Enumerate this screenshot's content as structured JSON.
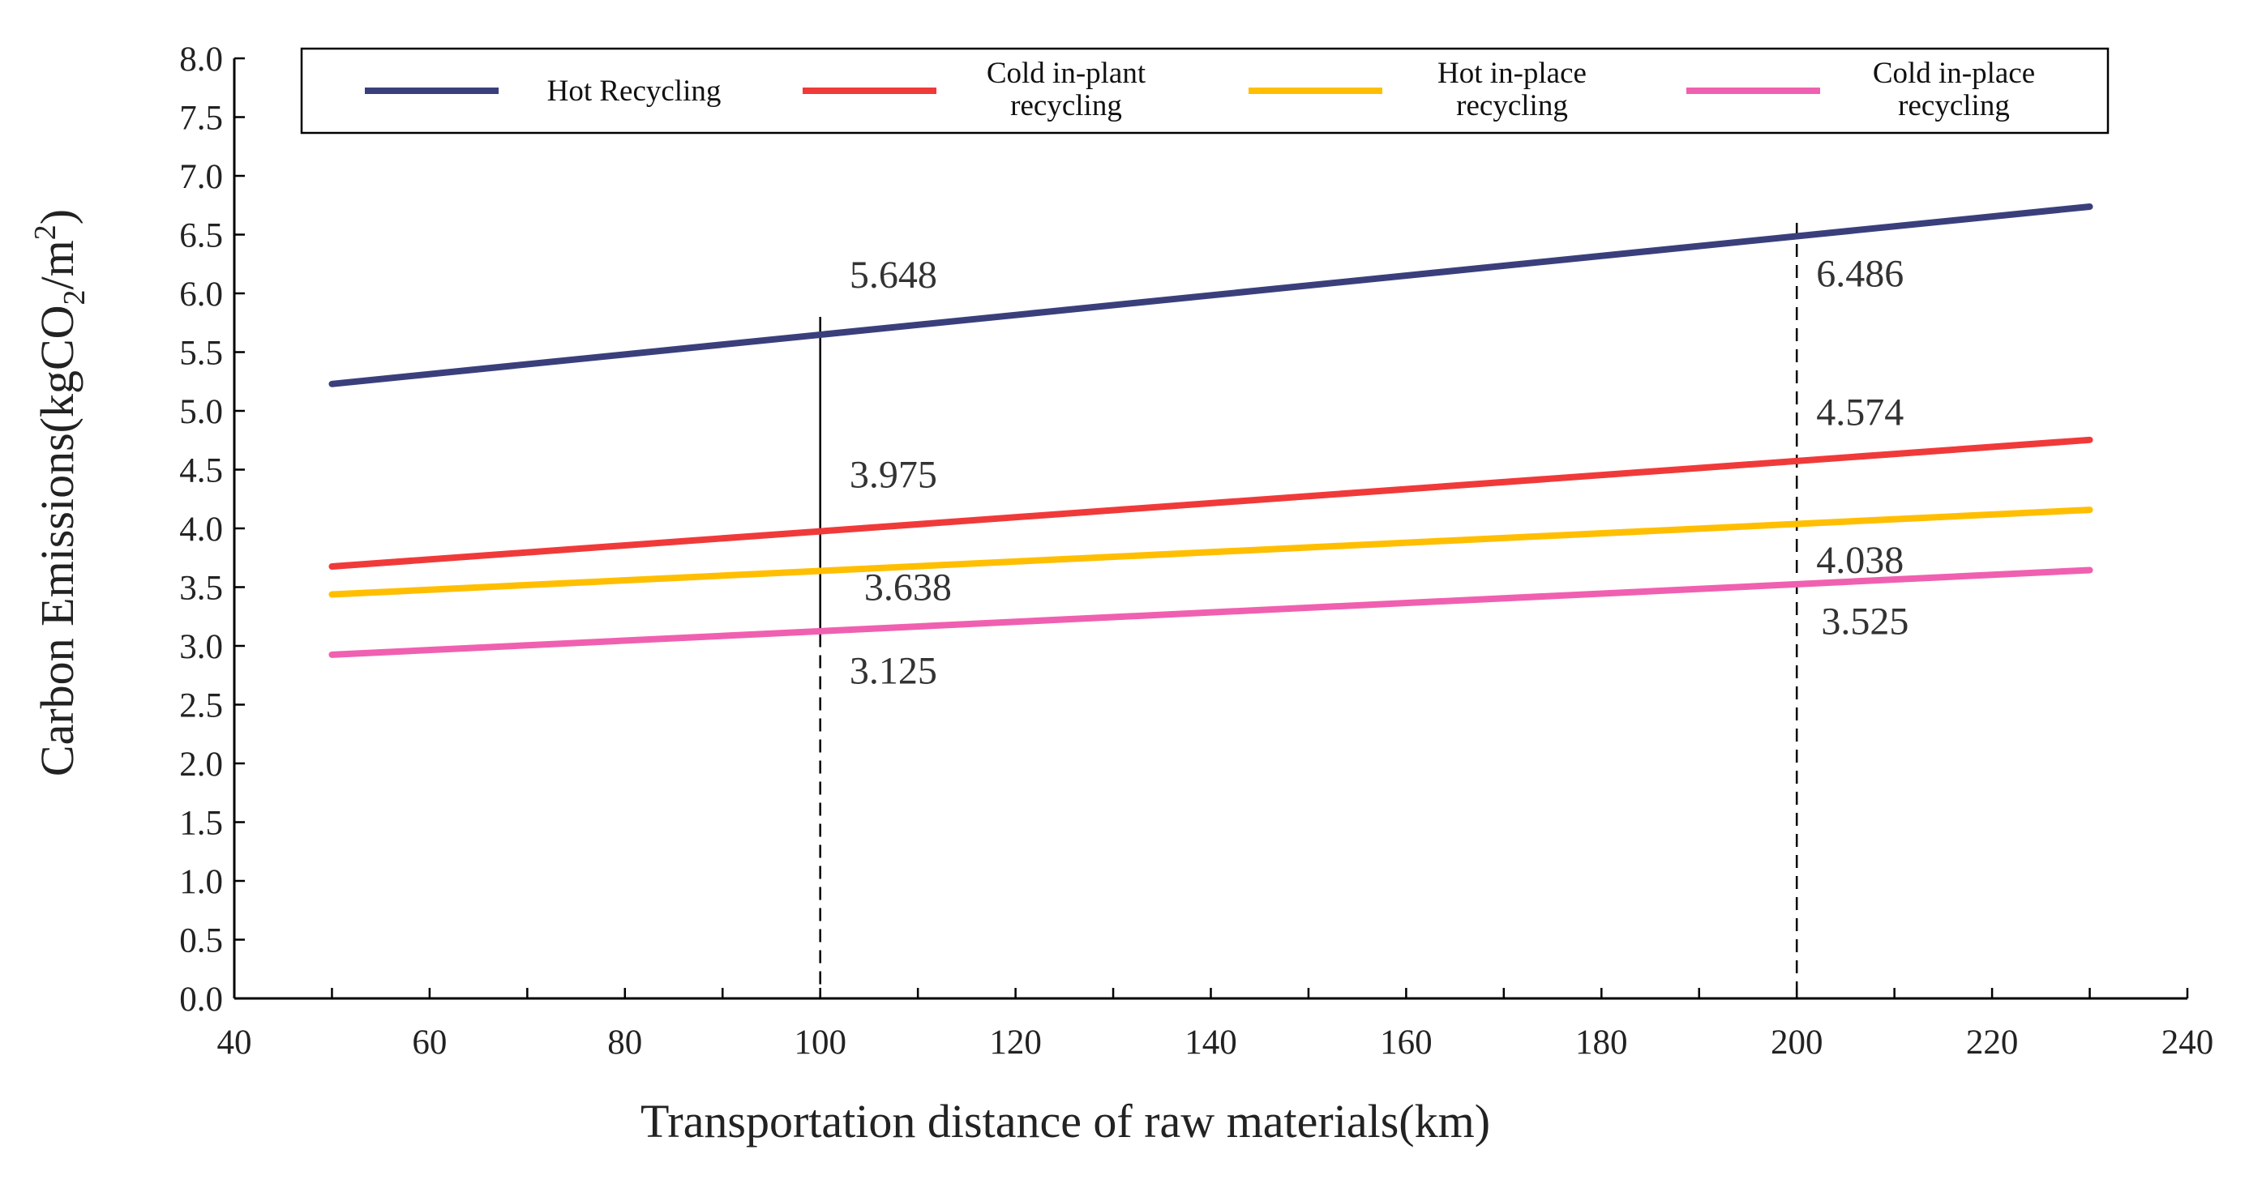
{
  "chart_data": {
    "type": "line",
    "x_label": "Transportation distance of raw materials(km)",
    "y_label_prefix": "Carbon Emissions(kgCO",
    "y_label_sub": "2",
    "y_label_mid": "/m",
    "y_label_sup": "2",
    "y_label_suffix": ")",
    "xlim": [
      40,
      240
    ],
    "ylim": [
      0,
      8
    ],
    "x_ticks": [
      "40",
      "60",
      "80",
      "100",
      "120",
      "140",
      "160",
      "180",
      "200",
      "220",
      "240"
    ],
    "y_ticks": [
      "0.0",
      "0.5",
      "1.0",
      "1.5",
      "2.0",
      "2.5",
      "3.0",
      "3.5",
      "4.0",
      "4.5",
      "5.0",
      "5.5",
      "6.0",
      "6.5",
      "7.0",
      "7.5",
      "8.0"
    ],
    "series": [
      {
        "name": "Hot Recycling",
        "legend_lines": [
          "Hot Recycling"
        ],
        "color": "#3a3f7c",
        "x": [
          50,
          230
        ],
        "y": [
          5.229,
          6.738
        ]
      },
      {
        "name": "Cold in-plant recycling",
        "legend_lines": [
          "Cold in-plant",
          "recycling"
        ],
        "color": "#f03a3a",
        "x": [
          50,
          230
        ],
        "y": [
          3.676,
          4.753
        ]
      },
      {
        "name": "Hot in-place recycling",
        "legend_lines": [
          "Hot in-place",
          "recycling"
        ],
        "color": "#ffbf00",
        "x": [
          50,
          230
        ],
        "y": [
          3.438,
          4.158
        ]
      },
      {
        "name": "Cold in-place recycling",
        "legend_lines": [
          "Cold in-place",
          "recycling"
        ],
        "color": "#f060b0",
        "x": [
          50,
          230
        ],
        "y": [
          2.925,
          3.645
        ]
      }
    ],
    "reference_lines": [
      {
        "x": 100,
        "style": "solid-then-dashed"
      },
      {
        "x": 200,
        "style": "dashed"
      }
    ],
    "annotations": [
      {
        "text": "5.648",
        "x": 103,
        "y": 6.05
      },
      {
        "text": "3.975",
        "x": 103,
        "y": 4.35
      },
      {
        "text": "3.638",
        "x": 104.5,
        "y": 3.39
      },
      {
        "text": "3.125",
        "x": 103,
        "y": 2.68
      },
      {
        "text": "6.486",
        "x": 202,
        "y": 6.06
      },
      {
        "text": "4.574",
        "x": 202,
        "y": 4.88
      },
      {
        "text": "4.038",
        "x": 202,
        "y": 3.62
      },
      {
        "text": "3.525",
        "x": 202.5,
        "y": 3.1
      }
    ]
  }
}
